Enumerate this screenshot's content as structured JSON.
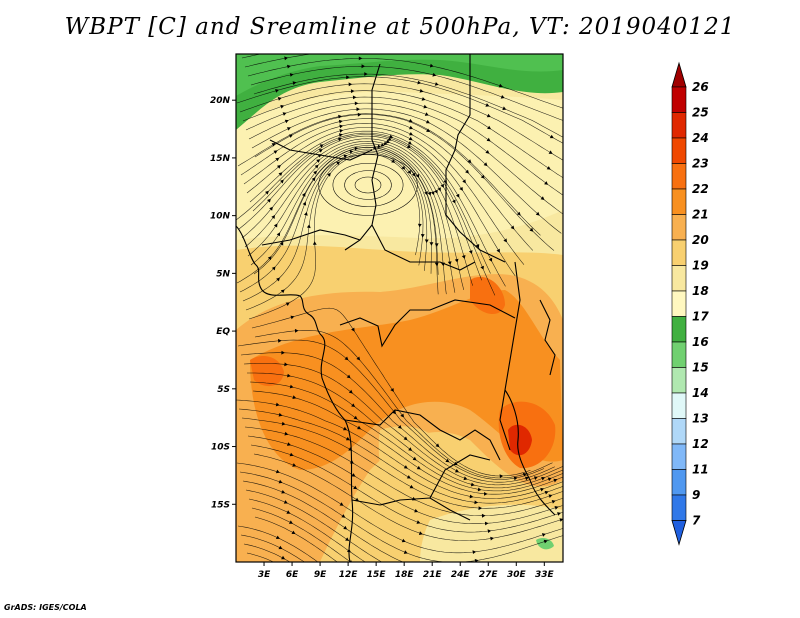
{
  "title": "WBPT [C] and Sreamline at 500hPa, VT: 2019040121",
  "footer": "GrADS: IGES/COLA",
  "map": {
    "lon_range": [
      0,
      35
    ],
    "lat_range": [
      -20,
      24
    ],
    "lat_ticks": [
      {
        "label": "20N",
        "value": 20
      },
      {
        "label": "15N",
        "value": 15
      },
      {
        "label": "10N",
        "value": 10
      },
      {
        "label": "5N",
        "value": 5
      },
      {
        "label": "EQ",
        "value": 0
      },
      {
        "label": "5S",
        "value": -5
      },
      {
        "label": "10S",
        "value": -10
      },
      {
        "label": "15S",
        "value": -15
      }
    ],
    "lon_ticks": [
      {
        "label": "3E",
        "value": 3
      },
      {
        "label": "6E",
        "value": 6
      },
      {
        "label": "9E",
        "value": 9
      },
      {
        "label": "12E",
        "value": 12
      },
      {
        "label": "15E",
        "value": 15
      },
      {
        "label": "18E",
        "value": 18
      },
      {
        "label": "21E",
        "value": 21
      },
      {
        "label": "24E",
        "value": 24
      },
      {
        "label": "27E",
        "value": 27
      },
      {
        "label": "30E",
        "value": 30
      },
      {
        "label": "33E",
        "value": 33
      }
    ]
  },
  "colorbar": {
    "labels": [
      "26",
      "25",
      "24",
      "23",
      "22",
      "21",
      "20",
      "19",
      "18",
      "17",
      "16",
      "15",
      "14",
      "13",
      "12",
      "11",
      "9",
      "7"
    ],
    "colors": [
      "#c00000",
      "#e02800",
      "#f04800",
      "#f87010",
      "#f89020",
      "#f8b050",
      "#f8d070",
      "#f8e8a0",
      "#fff8c0",
      "#40b040",
      "#70d070",
      "#b0e8b0",
      "#e0f8f8",
      "#b0d8f8",
      "#80b8f8",
      "#5098f0",
      "#3078e8"
    ],
    "top_arrow_color": "#a00000",
    "bottom_arrow_color": "#2060e0"
  }
}
